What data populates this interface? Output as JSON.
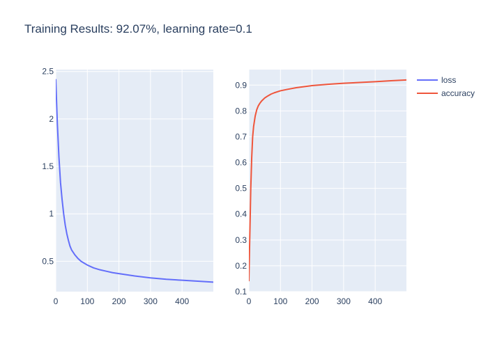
{
  "title": "Training Results: 92.07%, learning rate=0.1",
  "colors": {
    "plot_bg": "#e5ecf6",
    "grid": "#ffffff",
    "loss": "#636efa",
    "accuracy": "#ef553b",
    "text": "#2a3f5f"
  },
  "legend": [
    {
      "name": "loss",
      "color": "#636efa"
    },
    {
      "name": "accuracy",
      "color": "#ef553b"
    }
  ],
  "chart_data": [
    {
      "type": "line",
      "xlim": [
        0,
        499
      ],
      "ylim": [
        0.18,
        2.52
      ],
      "xticks": [
        0,
        100,
        200,
        300,
        400
      ],
      "xtick_labels": [
        "0",
        "100",
        "200",
        "300",
        "400"
      ],
      "yticks": [
        0.5,
        1,
        1.5,
        2,
        2.5
      ],
      "ytick_labels": [
        "0.5",
        "1",
        "1.5",
        "2",
        "2.5"
      ],
      "grid": true,
      "series": [
        {
          "name": "loss",
          "color": "#636efa",
          "x": [
            0,
            5,
            10,
            15,
            20,
            25,
            30,
            35,
            40,
            45,
            50,
            60,
            70,
            80,
            90,
            100,
            120,
            140,
            160,
            180,
            200,
            250,
            300,
            350,
            400,
            450,
            499
          ],
          "y": [
            2.42,
            1.95,
            1.6,
            1.33,
            1.15,
            1.0,
            0.88,
            0.79,
            0.72,
            0.66,
            0.62,
            0.57,
            0.53,
            0.5,
            0.48,
            0.46,
            0.43,
            0.41,
            0.395,
            0.38,
            0.37,
            0.345,
            0.325,
            0.31,
            0.3,
            0.29,
            0.28
          ]
        }
      ]
    },
    {
      "type": "line",
      "xlim": [
        0,
        499
      ],
      "ylim": [
        0.1,
        0.96
      ],
      "xticks": [
        0,
        100,
        200,
        300,
        400
      ],
      "xtick_labels": [
        "0",
        "100",
        "200",
        "300",
        "400"
      ],
      "yticks": [
        0.1,
        0.2,
        0.3,
        0.4,
        0.5,
        0.6,
        0.7,
        0.8,
        0.9
      ],
      "ytick_labels": [
        "0.1",
        "0.2",
        "0.3",
        "0.4",
        "0.5",
        "0.6",
        "0.7",
        "0.8",
        "0.9"
      ],
      "grid": true,
      "series": [
        {
          "name": "accuracy",
          "color": "#ef553b",
          "x": [
            0,
            3,
            6,
            9,
            12,
            15,
            20,
            25,
            30,
            35,
            40,
            50,
            60,
            70,
            80,
            100,
            120,
            150,
            200,
            250,
            300,
            350,
            400,
            450,
            499
          ],
          "y": [
            0.14,
            0.32,
            0.5,
            0.62,
            0.7,
            0.74,
            0.78,
            0.805,
            0.82,
            0.83,
            0.838,
            0.85,
            0.858,
            0.865,
            0.87,
            0.878,
            0.883,
            0.89,
            0.898,
            0.903,
            0.907,
            0.91,
            0.913,
            0.917,
            0.92
          ]
        }
      ]
    }
  ]
}
